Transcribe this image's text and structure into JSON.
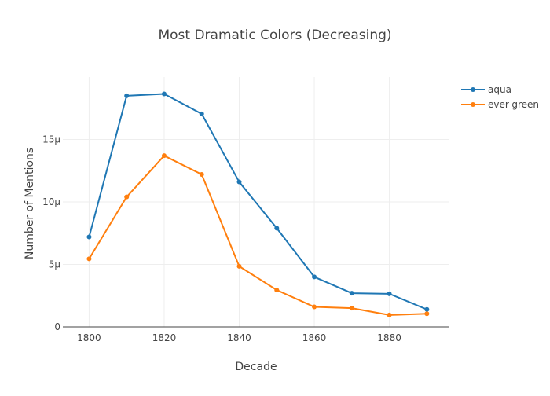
{
  "chart_data": {
    "type": "line",
    "title": "Most Dramatic Colors (Decreasing)",
    "xlabel": "Decade",
    "ylabel": "Number of Mentions",
    "x": [
      1800,
      1810,
      1820,
      1830,
      1840,
      1850,
      1860,
      1870,
      1880,
      1890
    ],
    "xlim": [
      1793,
      1896
    ],
    "ylim": [
      0,
      20
    ],
    "x_ticks": [
      1800,
      1820,
      1840,
      1860,
      1880
    ],
    "x_tick_labels": [
      "1800",
      "1820",
      "1840",
      "1860",
      "1880"
    ],
    "y_ticks": [
      0,
      5,
      10,
      15
    ],
    "y_tick_labels": [
      "0",
      "5μ",
      "10μ",
      "15μ"
    ],
    "y_scale_factor": 1e-06,
    "grid": true,
    "legend_position": "top-right",
    "series": [
      {
        "name": "aqua",
        "color": "#1f77b4",
        "values": [
          7.2,
          18.5,
          18.65,
          17.05,
          11.6,
          7.9,
          4.0,
          2.7,
          2.65,
          1.4
        ]
      },
      {
        "name": "ever-green",
        "color": "#ff7f0e",
        "values": [
          5.45,
          10.4,
          13.7,
          12.2,
          4.85,
          2.95,
          1.6,
          1.5,
          0.95,
          1.05
        ]
      }
    ]
  }
}
